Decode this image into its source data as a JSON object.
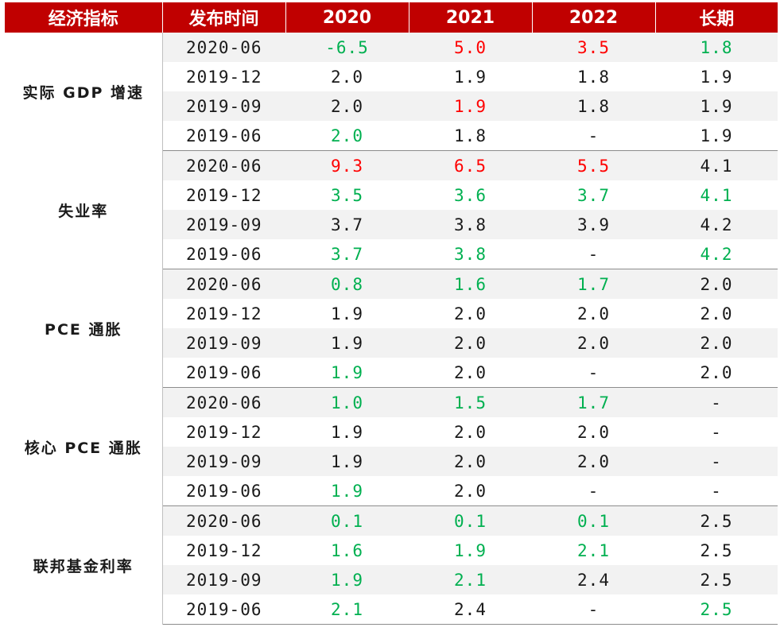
{
  "chart_data": {
    "type": "table",
    "columns": [
      "经济指标",
      "发布时间",
      "2020",
      "2021",
      "2022",
      "长期"
    ],
    "colors": {
      "header_bg": "#c00000",
      "red": "#ff0000",
      "green": "#00b050",
      "black": "#1a1a1a",
      "shade": "#f2f2f2"
    },
    "groups": [
      {
        "indicator": "实际 GDP 增速",
        "rows": [
          {
            "date": "2020-06",
            "values": [
              "-6.5",
              "5.0",
              "3.5",
              "1.8"
            ],
            "colors": [
              "green",
              "red",
              "red",
              "green"
            ]
          },
          {
            "date": "2019-12",
            "values": [
              "2.0",
              "1.9",
              "1.8",
              "1.9"
            ],
            "colors": [
              "black",
              "black",
              "black",
              "black"
            ]
          },
          {
            "date": "2019-09",
            "values": [
              "2.0",
              "1.9",
              "1.8",
              "1.9"
            ],
            "colors": [
              "black",
              "red",
              "black",
              "black"
            ]
          },
          {
            "date": "2019-06",
            "values": [
              "2.0",
              "1.8",
              "-",
              "1.9"
            ],
            "colors": [
              "green",
              "black",
              "black",
              "black"
            ]
          }
        ]
      },
      {
        "indicator": "失业率",
        "rows": [
          {
            "date": "2020-06",
            "values": [
              "9.3",
              "6.5",
              "5.5",
              "4.1"
            ],
            "colors": [
              "red",
              "red",
              "red",
              "black"
            ]
          },
          {
            "date": "2019-12",
            "values": [
              "3.5",
              "3.6",
              "3.7",
              "4.1"
            ],
            "colors": [
              "green",
              "green",
              "green",
              "green"
            ]
          },
          {
            "date": "2019-09",
            "values": [
              "3.7",
              "3.8",
              "3.9",
              "4.2"
            ],
            "colors": [
              "black",
              "black",
              "black",
              "black"
            ]
          },
          {
            "date": "2019-06",
            "values": [
              "3.7",
              "3.8",
              "-",
              "4.2"
            ],
            "colors": [
              "green",
              "green",
              "black",
              "green"
            ]
          }
        ]
      },
      {
        "indicator": "PCE 通胀",
        "rows": [
          {
            "date": "2020-06",
            "values": [
              "0.8",
              "1.6",
              "1.7",
              "2.0"
            ],
            "colors": [
              "green",
              "green",
              "green",
              "black"
            ]
          },
          {
            "date": "2019-12",
            "values": [
              "1.9",
              "2.0",
              "2.0",
              "2.0"
            ],
            "colors": [
              "black",
              "black",
              "black",
              "black"
            ]
          },
          {
            "date": "2019-09",
            "values": [
              "1.9",
              "2.0",
              "2.0",
              "2.0"
            ],
            "colors": [
              "black",
              "black",
              "black",
              "black"
            ]
          },
          {
            "date": "2019-06",
            "values": [
              "1.9",
              "2.0",
              "-",
              "2.0"
            ],
            "colors": [
              "green",
              "black",
              "black",
              "black"
            ]
          }
        ]
      },
      {
        "indicator": "核心 PCE 通胀",
        "rows": [
          {
            "date": "2020-06",
            "values": [
              "1.0",
              "1.5",
              "1.7",
              "-"
            ],
            "colors": [
              "green",
              "green",
              "green",
              "black"
            ]
          },
          {
            "date": "2019-12",
            "values": [
              "1.9",
              "2.0",
              "2.0",
              "-"
            ],
            "colors": [
              "black",
              "black",
              "black",
              "black"
            ]
          },
          {
            "date": "2019-09",
            "values": [
              "1.9",
              "2.0",
              "2.0",
              "-"
            ],
            "colors": [
              "black",
              "black",
              "black",
              "black"
            ]
          },
          {
            "date": "2019-06",
            "values": [
              "1.9",
              "2.0",
              "-",
              "-"
            ],
            "colors": [
              "green",
              "black",
              "black",
              "black"
            ]
          }
        ]
      },
      {
        "indicator": "联邦基金利率",
        "rows": [
          {
            "date": "2020-06",
            "values": [
              "0.1",
              "0.1",
              "0.1",
              "2.5"
            ],
            "colors": [
              "green",
              "green",
              "green",
              "black"
            ]
          },
          {
            "date": "2019-12",
            "values": [
              "1.6",
              "1.9",
              "2.1",
              "2.5"
            ],
            "colors": [
              "green",
              "green",
              "green",
              "black"
            ]
          },
          {
            "date": "2019-09",
            "values": [
              "1.9",
              "2.1",
              "2.4",
              "2.5"
            ],
            "colors": [
              "green",
              "green",
              "black",
              "black"
            ]
          },
          {
            "date": "2019-06",
            "values": [
              "2.1",
              "2.4",
              "-",
              "2.5"
            ],
            "colors": [
              "green",
              "black",
              "black",
              "green"
            ]
          }
        ]
      }
    ]
  }
}
